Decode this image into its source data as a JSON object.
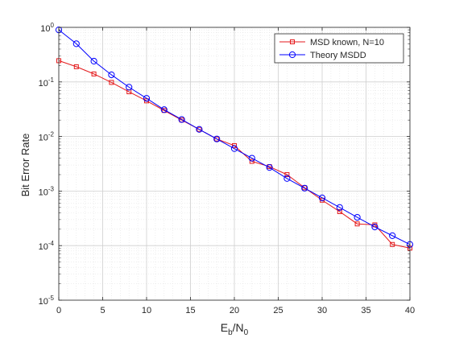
{
  "chart_data": {
    "type": "line",
    "xlabel": {
      "main": "E",
      "sub1": "b",
      "mid": "/N",
      "sub2": "0"
    },
    "ylabel": "Bit Error Rate",
    "x_scale": "linear",
    "y_scale": "log",
    "xlim": [
      0,
      40
    ],
    "ylim": [
      1e-05,
      1
    ],
    "x_ticks": [
      {
        "value": 0,
        "label": "0"
      },
      {
        "value": 5,
        "label": "5"
      },
      {
        "value": 10,
        "label": "10"
      },
      {
        "value": 15,
        "label": "15"
      },
      {
        "value": 20,
        "label": "20"
      },
      {
        "value": 25,
        "label": "25"
      },
      {
        "value": 30,
        "label": "30"
      },
      {
        "value": 35,
        "label": "35"
      },
      {
        "value": 40,
        "label": "40"
      }
    ],
    "y_ticks": [
      {
        "value": 1e-05,
        "base": "10",
        "exp": "-5"
      },
      {
        "value": 0.0001,
        "base": "10",
        "exp": "-4"
      },
      {
        "value": 0.001,
        "base": "10",
        "exp": "-3"
      },
      {
        "value": 0.01,
        "base": "10",
        "exp": "-2"
      },
      {
        "value": 0.1,
        "base": "10",
        "exp": "-1"
      },
      {
        "value": 1,
        "base": "10",
        "exp": "0"
      }
    ],
    "grid": true,
    "minor_grid": true,
    "legend_position": "top-right",
    "series": [
      {
        "name": "MSD known, N=10",
        "color": "#e41a1c",
        "marker": "square",
        "x": [
          0,
          2,
          4,
          6,
          8,
          10,
          12,
          14,
          16,
          18,
          20,
          22,
          24,
          26,
          28,
          30,
          32,
          34,
          36,
          38,
          40
        ],
        "y": [
          0.245,
          0.19,
          0.14,
          0.098,
          0.066,
          0.045,
          0.03,
          0.02,
          0.0135,
          0.009,
          0.0068,
          0.0035,
          0.0028,
          0.002,
          0.00115,
          0.00068,
          0.00042,
          0.00025,
          0.00024,
          0.000105,
          9e-05
        ]
      },
      {
        "name": "Theory MSDD",
        "color": "#0000ff",
        "marker": "circle",
        "x": [
          0,
          2,
          4,
          6,
          8,
          10,
          12,
          14,
          16,
          18,
          20,
          22,
          24,
          26,
          28,
          30,
          32,
          34,
          36,
          38,
          40
        ],
        "y": [
          0.9,
          0.5,
          0.24,
          0.135,
          0.08,
          0.05,
          0.031,
          0.0205,
          0.0135,
          0.009,
          0.006,
          0.004,
          0.0027,
          0.0017,
          0.00113,
          0.00075,
          0.0005,
          0.00033,
          0.00022,
          0.000152,
          0.000105
        ]
      }
    ]
  }
}
